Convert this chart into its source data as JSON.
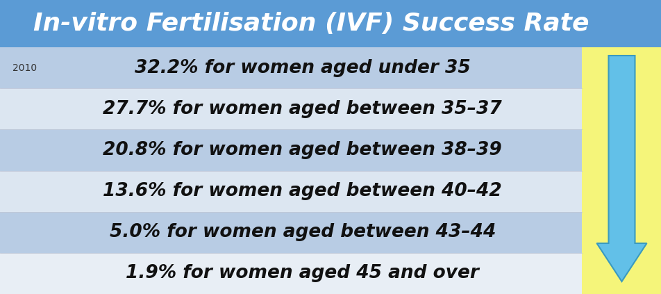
{
  "title": "In-vitro Fertilisation (IVF) Success Rate",
  "title_bg_color": "#5b9bd5",
  "title_text_color": "#ffffff",
  "title_fontsize": 26,
  "year_label": "2010",
  "rows": [
    {
      "text": "32.2% for women aged under 35",
      "bg": "#b8cce4"
    },
    {
      "text": "27.7% for women aged between 35–37",
      "bg": "#dce6f1"
    },
    {
      "text": "20.8% for women aged between 38–39",
      "bg": "#b8cce4"
    },
    {
      "text": "13.6% for women aged between 40–42",
      "bg": "#dce6f1"
    },
    {
      "text": "5.0% for women aged between 43–44",
      "bg": "#b8cce4"
    },
    {
      "text": "1.9% for women aged 45 and over",
      "bg": "#e8eef5"
    }
  ],
  "row_text_fontsize": 19,
  "arrow_body_color": "#62c0e8",
  "arrow_edge_color": "#3a9abf",
  "arrow_glow_color": "#f5f57a",
  "fig_width": 9.53,
  "fig_height": 4.23,
  "dpi": 100
}
